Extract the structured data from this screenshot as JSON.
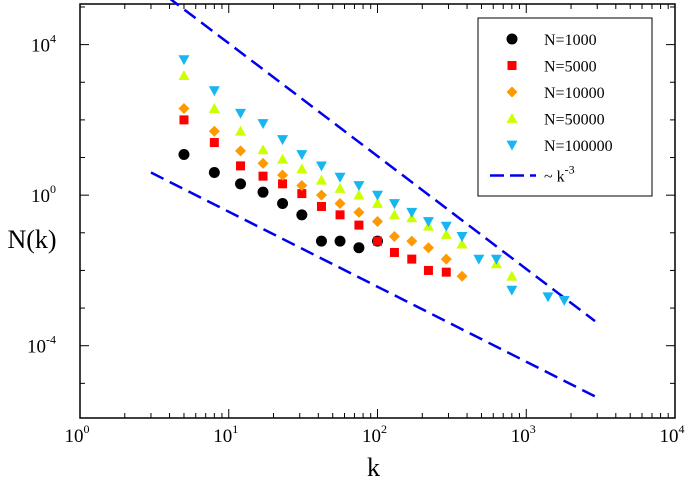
{
  "chart_data": {
    "type": "scatter",
    "title": "",
    "xlabel": "k",
    "ylabel": "N(k)",
    "xscale": "log",
    "yscale": "log",
    "xlim": [
      1,
      10000
    ],
    "ylim": [
      1.2e-06,
      120000
    ],
    "xticks": [
      {
        "base": "10",
        "exp": "0",
        "value": 1
      },
      {
        "base": "10",
        "exp": "1",
        "value": 10
      },
      {
        "base": "10",
        "exp": "2",
        "value": 100
      },
      {
        "base": "10",
        "exp": "3",
        "value": 1000
      },
      {
        "base": "10",
        "exp": "4",
        "value": 10000
      }
    ],
    "yticks": [
      {
        "base": "10",
        "exp": "-4",
        "value": 0.0001
      },
      {
        "base": "10",
        "exp": "0",
        "value": 1
      },
      {
        "base": "10",
        "exp": "4",
        "value": 10000
      }
    ],
    "grid": false,
    "legend_position": "top-right",
    "series": [
      {
        "name": "N=1000",
        "marker": "circle",
        "color": "#000000",
        "x": [
          5,
          8,
          12,
          17,
          23,
          31,
          42,
          56,
          75,
          100
        ],
        "y": [
          12,
          4,
          2,
          1.2,
          0.6,
          0.3,
          0.06,
          0.06,
          0.04,
          0.06
        ]
      },
      {
        "name": "N=5000",
        "marker": "square",
        "color": "#ff0000",
        "x": [
          5,
          8,
          12,
          17,
          23,
          31,
          42,
          56,
          75,
          100,
          130,
          170,
          220,
          290
        ],
        "y": [
          100,
          25,
          6,
          3.2,
          2,
          1.1,
          0.5,
          0.3,
          0.16,
          0.06,
          0.03,
          0.02,
          0.01,
          0.009
        ]
      },
      {
        "name": "N=10000",
        "marker": "diamond",
        "color": "#ff9900",
        "x": [
          5,
          8,
          12,
          17,
          23,
          31,
          42,
          56,
          75,
          100,
          130,
          170,
          220,
          290,
          370
        ],
        "y": [
          200,
          50,
          15,
          7,
          3.4,
          1.8,
          1,
          0.6,
          0.35,
          0.2,
          0.08,
          0.06,
          0.04,
          0.02,
          0.007
        ]
      },
      {
        "name": "N=50000",
        "marker": "triangle-up",
        "color": "#ccff00",
        "x": [
          5,
          8,
          12,
          17,
          23,
          31,
          42,
          56,
          75,
          100,
          130,
          170,
          220,
          290,
          370,
          630,
          800
        ],
        "y": [
          1500,
          200,
          50,
          16,
          9,
          5,
          2.5,
          1.5,
          1,
          0.6,
          0.3,
          0.25,
          0.15,
          0.09,
          0.05,
          0.015,
          0.007
        ]
      },
      {
        "name": "N=100000",
        "marker": "triangle-down",
        "color": "#17b6f0",
        "x": [
          5,
          8,
          12,
          17,
          23,
          31,
          42,
          56,
          75,
          100,
          130,
          170,
          220,
          290,
          370,
          480,
          630,
          800,
          1400,
          1800
        ],
        "y": [
          4000,
          600,
          150,
          80,
          30,
          12,
          6,
          3,
          1.8,
          1,
          0.6,
          0.35,
          0.2,
          0.15,
          0.08,
          0.02,
          0.02,
          0.003,
          0.002,
          0.0016
        ]
      }
    ],
    "reference_lines": [
      {
        "legend_name": "~ k",
        "legend_exponent": "-3",
        "style": "dashed",
        "color": "#0000ee",
        "slope": -3,
        "points": [
          [
            3,
            400000
          ],
          [
            2900,
            0.00045
          ]
        ]
      },
      {
        "legend_name": "~ k",
        "legend_exponent": "-3",
        "style": "dashed",
        "color": "#0000ee",
        "slope": -3,
        "points": [
          [
            3,
            4
          ],
          [
            2900,
            4.5e-06
          ]
        ]
      }
    ]
  }
}
